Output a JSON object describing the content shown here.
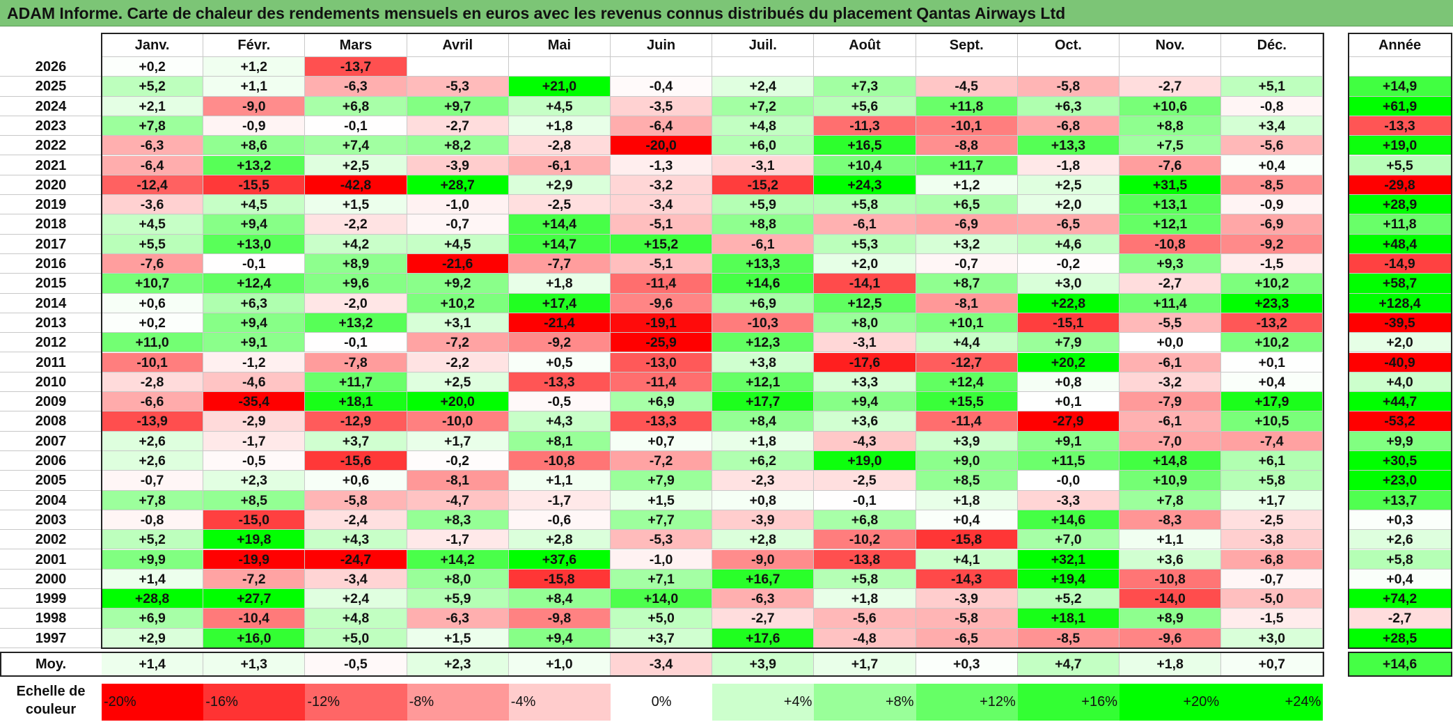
{
  "title": "ADAM Informe. Carte de chaleur des rendements mensuels en euros avec les revenus connus distribués du placement Qantas Airways Ltd",
  "chart_data": {
    "type": "heatmap",
    "title": "ADAM Informe. Carte de chaleur des rendements mensuels en euros avec les revenus connus distribués du placement Qantas Airways Ltd",
    "columns": [
      "Janv.",
      "Févr.",
      "Mars",
      "Avril",
      "Mai",
      "Juin",
      "Juil.",
      "Août",
      "Sept.",
      "Oct.",
      "Nov.",
      "Déc."
    ],
    "year_header": "Année",
    "rows": [
      {
        "year": "2026",
        "values": [
          "+0,2",
          "+1,2",
          "-13,7",
          "",
          "",
          "",
          "",
          "",
          "",
          "",
          "",
          ""
        ],
        "annual": ""
      },
      {
        "year": "2025",
        "values": [
          "+5,2",
          "+1,1",
          "-6,3",
          "-5,3",
          "+21,0",
          "-0,4",
          "+2,4",
          "+7,3",
          "-4,5",
          "-5,8",
          "-2,7",
          "+5,1"
        ],
        "annual": "+14,9"
      },
      {
        "year": "2024",
        "values": [
          "+2,1",
          "-9,0",
          "+6,8",
          "+9,7",
          "+4,5",
          "-3,5",
          "+7,2",
          "+5,6",
          "+11,8",
          "+6,3",
          "+10,6",
          "-0,8"
        ],
        "annual": "+61,9"
      },
      {
        "year": "2023",
        "values": [
          "+7,8",
          "-0,9",
          "-0,1",
          "-2,7",
          "+1,8",
          "-6,4",
          "+4,8",
          "-11,3",
          "-10,1",
          "-6,8",
          "+8,8",
          "+3,4"
        ],
        "annual": "-13,3"
      },
      {
        "year": "2022",
        "values": [
          "-6,3",
          "+8,6",
          "+7,4",
          "+8,2",
          "-2,8",
          "-20,0",
          "+6,0",
          "+16,5",
          "-8,8",
          "+13,3",
          "+7,5",
          "-5,6"
        ],
        "annual": "+19,0"
      },
      {
        "year": "2021",
        "values": [
          "-6,4",
          "+13,2",
          "+2,5",
          "-3,9",
          "-6,1",
          "-1,3",
          "-3,1",
          "+10,4",
          "+11,7",
          "-1,8",
          "-7,6",
          "+0,4"
        ],
        "annual": "+5,5"
      },
      {
        "year": "2020",
        "values": [
          "-12,4",
          "-15,5",
          "-42,8",
          "+28,7",
          "+2,9",
          "-3,2",
          "-15,2",
          "+24,3",
          "+1,2",
          "+2,5",
          "+31,5",
          "-8,5"
        ],
        "annual": "-29,8"
      },
      {
        "year": "2019",
        "values": [
          "-3,6",
          "+4,5",
          "+1,5",
          "-1,0",
          "-2,5",
          "-3,4",
          "+5,9",
          "+5,8",
          "+6,5",
          "+2,0",
          "+13,1",
          "-0,9"
        ],
        "annual": "+28,9"
      },
      {
        "year": "2018",
        "values": [
          "+4,5",
          "+9,4",
          "-2,2",
          "-0,7",
          "+14,4",
          "-5,1",
          "+8,8",
          "-6,1",
          "-6,9",
          "-6,5",
          "+12,1",
          "-6,9"
        ],
        "annual": "+11,8"
      },
      {
        "year": "2017",
        "values": [
          "+5,5",
          "+13,0",
          "+4,2",
          "+4,5",
          "+14,7",
          "+15,2",
          "-6,1",
          "+5,3",
          "+3,2",
          "+4,6",
          "-10,8",
          "-9,2"
        ],
        "annual": "+48,4"
      },
      {
        "year": "2016",
        "values": [
          "-7,6",
          "-0,1",
          "+8,9",
          "-21,6",
          "-7,7",
          "-5,1",
          "+13,3",
          "+2,0",
          "-0,7",
          "-0,2",
          "+9,3",
          "-1,5"
        ],
        "annual": "-14,9"
      },
      {
        "year": "2015",
        "values": [
          "+10,7",
          "+12,4",
          "+9,6",
          "+9,2",
          "+1,8",
          "-11,4",
          "+14,6",
          "-14,1",
          "+8,7",
          "+3,0",
          "-2,7",
          "+10,2"
        ],
        "annual": "+58,7"
      },
      {
        "year": "2014",
        "values": [
          "+0,6",
          "+6,3",
          "-2,0",
          "+10,2",
          "+17,4",
          "-9,6",
          "+6,9",
          "+12,5",
          "-8,1",
          "+22,8",
          "+11,4",
          "+23,3"
        ],
        "annual": "+128,4"
      },
      {
        "year": "2013",
        "values": [
          "+0,2",
          "+9,4",
          "+13,2",
          "+3,1",
          "-21,4",
          "-19,1",
          "-10,3",
          "+8,0",
          "+10,1",
          "-15,1",
          "-5,5",
          "-13,2"
        ],
        "annual": "-39,5"
      },
      {
        "year": "2012",
        "values": [
          "+11,0",
          "+9,1",
          "-0,1",
          "-7,2",
          "-9,2",
          "-25,9",
          "+12,3",
          "-3,1",
          "+4,4",
          "+7,9",
          "+0,0",
          "+10,2"
        ],
        "annual": "+2,0"
      },
      {
        "year": "2011",
        "values": [
          "-10,1",
          "-1,2",
          "-7,8",
          "-2,2",
          "+0,5",
          "-13,0",
          "+3,8",
          "-17,6",
          "-12,7",
          "+20,2",
          "-6,1",
          "+0,1"
        ],
        "annual": "-40,9"
      },
      {
        "year": "2010",
        "values": [
          "-2,8",
          "-4,6",
          "+11,7",
          "+2,5",
          "-13,3",
          "-11,4",
          "+12,1",
          "+3,3",
          "+12,4",
          "+0,8",
          "-3,2",
          "+0,4"
        ],
        "annual": "+4,0"
      },
      {
        "year": "2009",
        "values": [
          "-6,6",
          "-35,4",
          "+18,1",
          "+20,0",
          "-0,5",
          "+6,9",
          "+17,7",
          "+9,4",
          "+15,5",
          "+0,1",
          "-7,9",
          "+17,9"
        ],
        "annual": "+44,7"
      },
      {
        "year": "2008",
        "values": [
          "-13,9",
          "-2,9",
          "-12,9",
          "-10,0",
          "+4,3",
          "-13,3",
          "+8,4",
          "+3,6",
          "-11,4",
          "-27,9",
          "-6,1",
          "+10,5"
        ],
        "annual": "-53,2"
      },
      {
        "year": "2007",
        "values": [
          "+2,6",
          "-1,7",
          "+3,7",
          "+1,7",
          "+8,1",
          "+0,7",
          "+1,8",
          "-4,3",
          "+3,9",
          "+9,1",
          "-7,0",
          "-7,4"
        ],
        "annual": "+9,9"
      },
      {
        "year": "2006",
        "values": [
          "+2,6",
          "-0,5",
          "-15,6",
          "-0,2",
          "-10,8",
          "-7,2",
          "+6,2",
          "+19,0",
          "+9,0",
          "+11,5",
          "+14,8",
          "+6,1"
        ],
        "annual": "+30,5"
      },
      {
        "year": "2005",
        "values": [
          "-0,7",
          "+2,3",
          "+0,6",
          "-8,1",
          "+1,1",
          "+7,9",
          "-2,3",
          "-2,5",
          "+8,5",
          "-0,0",
          "+10,9",
          "+5,8"
        ],
        "annual": "+23,0"
      },
      {
        "year": "2004",
        "values": [
          "+7,8",
          "+8,5",
          "-5,8",
          "-4,7",
          "-1,7",
          "+1,5",
          "+0,8",
          "-0,1",
          "+1,8",
          "-3,3",
          "+7,8",
          "+1,7"
        ],
        "annual": "+13,7"
      },
      {
        "year": "2003",
        "values": [
          "-0,8",
          "-15,0",
          "-2,4",
          "+8,3",
          "-0,6",
          "+7,7",
          "-3,9",
          "+6,8",
          "+0,4",
          "+14,6",
          "-8,3",
          "-2,5"
        ],
        "annual": "+0,3"
      },
      {
        "year": "2002",
        "values": [
          "+5,2",
          "+19,8",
          "+4,3",
          "-1,7",
          "+2,8",
          "-5,3",
          "+2,8",
          "-10,2",
          "-15,8",
          "+7,0",
          "+1,1",
          "-3,8"
        ],
        "annual": "+2,6"
      },
      {
        "year": "2001",
        "values": [
          "+9,9",
          "-19,9",
          "-24,7",
          "+14,2",
          "+37,6",
          "-1,0",
          "-9,0",
          "-13,8",
          "+4,1",
          "+32,1",
          "+3,6",
          "-6,8"
        ],
        "annual": "+5,8"
      },
      {
        "year": "2000",
        "values": [
          "+1,4",
          "-7,2",
          "-3,4",
          "+8,0",
          "-15,8",
          "+7,1",
          "+16,7",
          "+5,8",
          "-14,3",
          "+19,4",
          "-10,8",
          "-0,7"
        ],
        "annual": "+0,4"
      },
      {
        "year": "1999",
        "values": [
          "+28,8",
          "+27,7",
          "+2,4",
          "+5,9",
          "+8,4",
          "+14,0",
          "-6,3",
          "+1,8",
          "-3,9",
          "+5,2",
          "-14,0",
          "-5,0"
        ],
        "annual": "+74,2"
      },
      {
        "year": "1998",
        "values": [
          "+6,9",
          "-10,4",
          "+4,8",
          "-6,3",
          "-9,8",
          "+5,0",
          "-2,7",
          "-5,6",
          "-5,8",
          "+18,1",
          "+8,9",
          "-1,5"
        ],
        "annual": "-2,7"
      },
      {
        "year": "1997",
        "values": [
          "+2,9",
          "+16,0",
          "+5,0",
          "+1,5",
          "+9,4",
          "+3,7",
          "+17,6",
          "-4,8",
          "-6,5",
          "-8,5",
          "-9,6",
          "+3,0"
        ],
        "annual": "+28,5"
      }
    ],
    "average": {
      "label": "Moy.",
      "values": [
        "+1,4",
        "+1,3",
        "-0,5",
        "+2,3",
        "+1,0",
        "-3,4",
        "+3,9",
        "+1,7",
        "+0,3",
        "+4,7",
        "+1,8",
        "+0,7"
      ],
      "annual": "+14,6"
    },
    "color_scale": {
      "label": "Echelle de couleur",
      "stops": [
        {
          "label": "-20%",
          "value": -20
        },
        {
          "label": "-16%",
          "value": -16
        },
        {
          "label": "-12%",
          "value": -12
        },
        {
          "label": "-8%",
          "value": -8
        },
        {
          "label": "-4%",
          "value": -4
        },
        {
          "label": "0%",
          "value": 0
        },
        {
          "label": "+4%",
          "value": 4
        },
        {
          "label": "+8%",
          "value": 8
        },
        {
          "label": "+12%",
          "value": 12
        },
        {
          "label": "+16%",
          "value": 16
        },
        {
          "label": "+20%",
          "value": 20
        },
        {
          "label": "+24%",
          "value": 24
        }
      ]
    },
    "colors": {
      "negative_max": "#ff0000",
      "positive_max": "#00ff00",
      "neutral": "#ffffff",
      "title_bar": "#7cc576"
    }
  }
}
